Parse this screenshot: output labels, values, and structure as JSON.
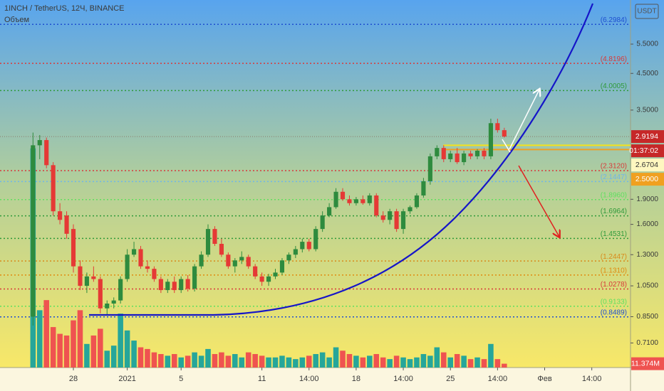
{
  "chart_data": {
    "type": "candlestick",
    "title": "1INCH / TetherUS, 12Ч, BINANCE",
    "subtitle": "Объем",
    "currency": "USDT",
    "log_scale": true,
    "grid": false,
    "ylim": [
      0.6,
      7.44
    ],
    "yticks": [
      {
        "value": 5.5,
        "label": "5.5000"
      },
      {
        "value": 4.5,
        "label": "4.5000"
      },
      {
        "value": 3.5,
        "label": "3.5000"
      },
      {
        "value": 1.9,
        "label": "1.9000"
      },
      {
        "value": 1.6,
        "label": "1.6000"
      },
      {
        "value": 1.3,
        "label": "1.3000"
      },
      {
        "value": 1.05,
        "label": "1.0500"
      },
      {
        "value": 0.85,
        "label": "0.8500"
      },
      {
        "value": 0.71,
        "label": "0.7100"
      }
    ],
    "xlim": [
      -4.9,
      88.75
    ],
    "xticks": [
      {
        "value": 6,
        "label": "28"
      },
      {
        "value": 14,
        "label": "2021"
      },
      {
        "value": 22,
        "label": "5"
      },
      {
        "value": 34,
        "label": "11"
      },
      {
        "value": 41,
        "label": "14:00"
      },
      {
        "value": 48,
        "label": "18"
      },
      {
        "value": 55,
        "label": "14:00"
      },
      {
        "value": 62,
        "label": "25"
      },
      {
        "value": 69,
        "label": "14:00"
      },
      {
        "value": 76,
        "label": "Фев"
      },
      {
        "value": 83,
        "label": "14:00"
      }
    ],
    "up_color": "#2e8b3e",
    "down_color": "#e53935",
    "volume_up_color": "#26a69a",
    "volume_down_color": "#ef5350",
    "open": [
      0.85,
      2.75,
      2.85,
      2.4,
      1.75,
      1.7,
      1.55,
      1.2,
      1.05,
      1.12,
      1.1,
      0.9,
      0.93,
      0.95,
      1.1,
      1.3,
      1.35,
      1.2,
      1.18,
      1.1,
      1.02,
      1.08,
      1.02,
      1.1,
      1.03,
      1.2,
      1.3,
      1.55,
      1.4,
      1.3,
      1.2,
      1.25,
      1.28,
      1.2,
      1.12,
      1.08,
      1.12,
      1.15,
      1.25,
      1.3,
      1.35,
      1.42,
      1.35,
      1.55,
      1.7,
      1.8,
      2.0,
      1.9,
      1.85,
      1.9,
      1.85,
      1.95,
      1.7,
      1.65,
      1.75,
      1.55,
      1.75,
      1.8,
      1.95,
      2.15,
      2.55,
      2.7,
      2.5,
      2.6,
      2.45,
      2.6,
      2.55,
      2.65,
      2.55,
      3.2,
      3.05
    ],
    "high": [
      3.0,
      2.95,
      2.9,
      2.45,
      1.85,
      1.75,
      1.6,
      1.25,
      1.15,
      1.2,
      1.12,
      0.95,
      0.97,
      1.12,
      1.35,
      1.42,
      1.38,
      1.25,
      1.2,
      1.12,
      1.1,
      1.12,
      1.12,
      1.13,
      1.22,
      1.33,
      1.6,
      1.58,
      1.45,
      1.32,
      1.27,
      1.33,
      1.3,
      1.22,
      1.15,
      1.14,
      1.18,
      1.27,
      1.32,
      1.38,
      1.45,
      1.45,
      1.58,
      1.75,
      1.85,
      2.05,
      2.05,
      1.95,
      1.93,
      1.95,
      1.98,
      1.98,
      1.75,
      1.78,
      1.78,
      1.78,
      1.82,
      1.98,
      2.2,
      2.6,
      2.75,
      2.75,
      2.65,
      2.7,
      2.65,
      2.65,
      2.68,
      2.7,
      3.3,
      3.3,
      3.1
    ],
    "low": [
      0.8,
      2.5,
      2.35,
      1.7,
      1.6,
      1.45,
      1.15,
      1.02,
      1.0,
      1.08,
      0.87,
      0.86,
      0.9,
      0.93,
      1.08,
      1.28,
      1.18,
      1.15,
      1.08,
      1.0,
      1.0,
      1.0,
      1.0,
      1.01,
      1.01,
      1.18,
      1.28,
      1.38,
      1.28,
      1.18,
      1.15,
      1.22,
      1.18,
      1.1,
      1.05,
      1.05,
      1.1,
      1.13,
      1.22,
      1.27,
      1.32,
      1.33,
      1.33,
      1.52,
      1.68,
      1.78,
      1.88,
      1.82,
      1.82,
      1.83,
      1.82,
      1.68,
      1.62,
      1.6,
      1.52,
      1.5,
      1.72,
      1.78,
      1.92,
      2.1,
      2.5,
      2.45,
      2.45,
      2.42,
      2.4,
      2.5,
      2.5,
      2.5,
      2.5,
      3.0,
      2.9
    ],
    "close": [
      2.75,
      2.85,
      2.4,
      1.75,
      1.65,
      1.5,
      1.2,
      1.05,
      1.12,
      1.1,
      0.9,
      0.93,
      0.95,
      1.1,
      1.3,
      1.35,
      1.2,
      1.18,
      1.1,
      1.02,
      1.08,
      1.02,
      1.1,
      1.03,
      1.2,
      1.3,
      1.55,
      1.4,
      1.3,
      1.2,
      1.25,
      1.28,
      1.2,
      1.12,
      1.08,
      1.12,
      1.15,
      1.25,
      1.3,
      1.35,
      1.42,
      1.35,
      1.55,
      1.7,
      1.8,
      2.0,
      1.9,
      1.85,
      1.9,
      1.85,
      1.95,
      1.7,
      1.65,
      1.75,
      1.55,
      1.75,
      1.8,
      1.95,
      2.15,
      2.55,
      2.7,
      2.5,
      2.6,
      2.45,
      2.6,
      2.55,
      2.65,
      2.55,
      3.2,
      3.05,
      2.92
    ],
    "volume": [
      650,
      170,
      200,
      120,
      100,
      95,
      140,
      170,
      70,
      95,
      115,
      50,
      65,
      160,
      110,
      80,
      60,
      55,
      45,
      40,
      35,
      40,
      30,
      35,
      45,
      35,
      55,
      40,
      45,
      35,
      40,
      30,
      45,
      40,
      35,
      30,
      30,
      35,
      30,
      25,
      30,
      35,
      40,
      45,
      30,
      60,
      50,
      40,
      35,
      30,
      35,
      40,
      30,
      25,
      35,
      30,
      25,
      30,
      40,
      35,
      60,
      45,
      30,
      40,
      35,
      25,
      30,
      25,
      70,
      25,
      11.374
    ],
    "y2lim": [
      0,
      1090
    ],
    "volume_badge": {
      "value": 11.374,
      "label": "11.374M"
    },
    "levels": {
      "values": [
        6.2984,
        4.8196,
        4.0005,
        2.312,
        2.1447,
        1.896,
        1.6964,
        1.4531,
        1.2447,
        1.131,
        1.0278,
        0.9133,
        0.8489
      ],
      "value_labels": [
        "(6.2984)",
        "(4.8196)",
        "(4.0005)",
        "(2.3120)",
        "(2.1447)",
        "(1.8960)",
        "(1.6964)",
        "(1.4531)",
        "(1.2447)",
        "(1.1310)",
        "(1.0278)",
        "(0.9133)",
        "(0.8489)"
      ],
      "colors": [
        "#1f4fd0",
        "#d83a3a",
        "#2f9a3a",
        "#d83a3a",
        "#6fb6e8",
        "#5fe05f",
        "#2f9a3a",
        "#2f9a3a",
        "#d98a1a",
        "#e08a10",
        "#d83a3a",
        "#5fe05f",
        "#1f4fd0"
      ]
    },
    "zone_lines": {
      "values": [
        2.75,
        2.6704
      ],
      "colors": [
        "#f5e21a",
        "#f0a020"
      ]
    },
    "last_price": 2.9194,
    "countdown": "01:37:02",
    "badges": [
      {
        "value": 2.6704,
        "color": "#fff7c0",
        "text_color": "#333333"
      },
      {
        "value": 2.5,
        "label": "2.5000",
        "color": "#f0a020",
        "text_color": "#ffffff"
      }
    ]
  }
}
